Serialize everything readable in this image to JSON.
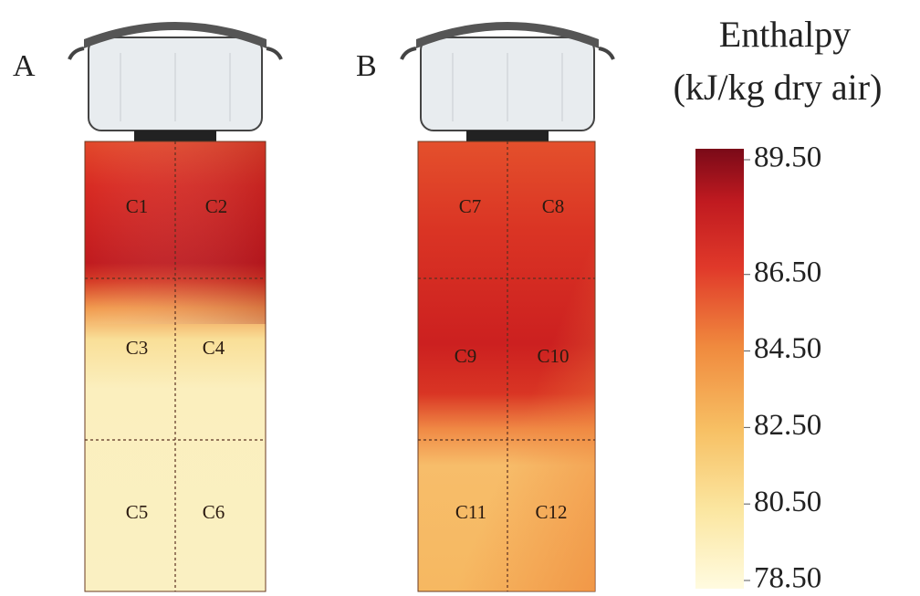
{
  "panels": [
    {
      "label": "A",
      "cells": [
        "C1",
        "C2",
        "C3",
        "C4",
        "C5",
        "C6"
      ]
    },
    {
      "label": "B",
      "cells": [
        "C7",
        "C8",
        "C9",
        "C10",
        "C11",
        "C12"
      ]
    }
  ],
  "colorbar": {
    "title": [
      "Enthalpy",
      "(kJ/kg dry air)"
    ],
    "range": [
      78.5,
      89.5
    ],
    "ticks": [
      {
        "value": 89.5,
        "label": "89.50"
      },
      {
        "value": 86.5,
        "label": "86.50"
      },
      {
        "value": 84.5,
        "label": "84.50"
      },
      {
        "value": 82.5,
        "label": "82.50"
      },
      {
        "value": 80.5,
        "label": "80.50"
      },
      {
        "value": 78.5,
        "label": "78.50"
      }
    ]
  }
}
